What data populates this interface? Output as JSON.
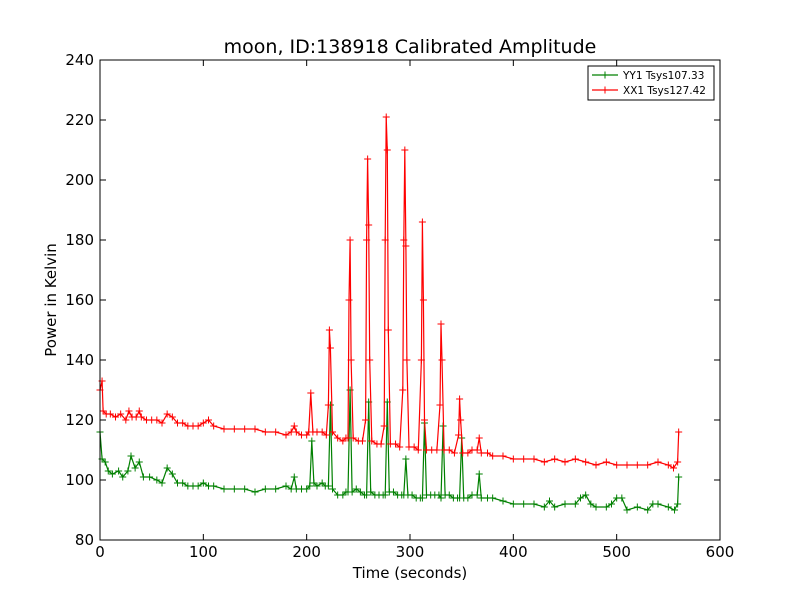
{
  "chart_data": {
    "type": "line",
    "title": "moon, ID:138918 Calibrated Amplitude",
    "xlabel": "Time (seconds)",
    "ylabel": "Power in Kelvin",
    "xlim": [
      0,
      600
    ],
    "ylim": [
      80,
      240
    ],
    "xticks": [
      0,
      100,
      200,
      300,
      400,
      500,
      600
    ],
    "yticks": [
      80,
      100,
      120,
      140,
      160,
      180,
      200,
      220,
      240
    ],
    "xtick_labels": [
      "0",
      "100",
      "200",
      "300",
      "400",
      "500",
      "600"
    ],
    "ytick_labels": [
      "80",
      "100",
      "120",
      "140",
      "160",
      "180",
      "200",
      "220",
      "240"
    ],
    "grid": false,
    "legend_position": "top-right",
    "marker": "+",
    "series": [
      {
        "name": "YY1 Tsys107.33",
        "color": "#008000",
        "points": [
          [
            0,
            116
          ],
          [
            2,
            107
          ],
          [
            5,
            106
          ],
          [
            8,
            103
          ],
          [
            12,
            102
          ],
          [
            18,
            103
          ],
          [
            22,
            101
          ],
          [
            27,
            103
          ],
          [
            30,
            108
          ],
          [
            34,
            104
          ],
          [
            38,
            106
          ],
          [
            42,
            101
          ],
          [
            48,
            101
          ],
          [
            55,
            100
          ],
          [
            60,
            99
          ],
          [
            65,
            104
          ],
          [
            70,
            102
          ],
          [
            75,
            99
          ],
          [
            80,
            99
          ],
          [
            85,
            98
          ],
          [
            90,
            98
          ],
          [
            95,
            98
          ],
          [
            100,
            99
          ],
          [
            105,
            98
          ],
          [
            110,
            98
          ],
          [
            120,
            97
          ],
          [
            130,
            97
          ],
          [
            140,
            97
          ],
          [
            150,
            96
          ],
          [
            160,
            97
          ],
          [
            170,
            97
          ],
          [
            180,
            98
          ],
          [
            185,
            97
          ],
          [
            188,
            101
          ],
          [
            190,
            97
          ],
          [
            195,
            97
          ],
          [
            200,
            97
          ],
          [
            203,
            98
          ],
          [
            205,
            113
          ],
          [
            207,
            99
          ],
          [
            210,
            98
          ],
          [
            215,
            99
          ],
          [
            218,
            98
          ],
          [
            221,
            98
          ],
          [
            223,
            125
          ],
          [
            225,
            97
          ],
          [
            230,
            95
          ],
          [
            235,
            95
          ],
          [
            238,
            96
          ],
          [
            240,
            96
          ],
          [
            242,
            130
          ],
          [
            244,
            96
          ],
          [
            248,
            97
          ],
          [
            252,
            96
          ],
          [
            256,
            95
          ],
          [
            258,
            95
          ],
          [
            260,
            126
          ],
          [
            262,
            96
          ],
          [
            266,
            95
          ],
          [
            270,
            95
          ],
          [
            274,
            95
          ],
          [
            276,
            95
          ],
          [
            278,
            126
          ],
          [
            280,
            96
          ],
          [
            284,
            96
          ],
          [
            288,
            95
          ],
          [
            292,
            95
          ],
          [
            294,
            95
          ],
          [
            296,
            107
          ],
          [
            298,
            95
          ],
          [
            302,
            95
          ],
          [
            306,
            94
          ],
          [
            310,
            94
          ],
          [
            312,
            94
          ],
          [
            314,
            119
          ],
          [
            316,
            95
          ],
          [
            320,
            95
          ],
          [
            324,
            95
          ],
          [
            328,
            95
          ],
          [
            330,
            94
          ],
          [
            332,
            118
          ],
          [
            334,
            95
          ],
          [
            338,
            95
          ],
          [
            342,
            94
          ],
          [
            346,
            94
          ],
          [
            348,
            94
          ],
          [
            350,
            114
          ],
          [
            352,
            94
          ],
          [
            356,
            94
          ],
          [
            360,
            95
          ],
          [
            365,
            95
          ],
          [
            367,
            102
          ],
          [
            369,
            94
          ],
          [
            375,
            94
          ],
          [
            380,
            94
          ],
          [
            390,
            93
          ],
          [
            400,
            92
          ],
          [
            410,
            92
          ],
          [
            420,
            92
          ],
          [
            430,
            91
          ],
          [
            435,
            93
          ],
          [
            440,
            91
          ],
          [
            450,
            92
          ],
          [
            460,
            92
          ],
          [
            465,
            94
          ],
          [
            470,
            95
          ],
          [
            475,
            92
          ],
          [
            480,
            91
          ],
          [
            490,
            91
          ],
          [
            495,
            92
          ],
          [
            500,
            94
          ],
          [
            505,
            94
          ],
          [
            510,
            90
          ],
          [
            520,
            91
          ],
          [
            530,
            90
          ],
          [
            535,
            92
          ],
          [
            540,
            92
          ],
          [
            550,
            91
          ],
          [
            556,
            90
          ],
          [
            559,
            92
          ],
          [
            560,
            101
          ]
        ]
      },
      {
        "name": "XX1 Tsys127.42",
        "color": "#ff0000",
        "points": [
          [
            0,
            130
          ],
          [
            2,
            133
          ],
          [
            3,
            123
          ],
          [
            6,
            122
          ],
          [
            10,
            122
          ],
          [
            15,
            121
          ],
          [
            20,
            122
          ],
          [
            25,
            120
          ],
          [
            28,
            123
          ],
          [
            31,
            121
          ],
          [
            35,
            121
          ],
          [
            38,
            123
          ],
          [
            40,
            121
          ],
          [
            45,
            120
          ],
          [
            50,
            120
          ],
          [
            55,
            120
          ],
          [
            60,
            119
          ],
          [
            65,
            122
          ],
          [
            70,
            121
          ],
          [
            75,
            119
          ],
          [
            80,
            119
          ],
          [
            85,
            118
          ],
          [
            90,
            118
          ],
          [
            95,
            118
          ],
          [
            100,
            119
          ],
          [
            105,
            120
          ],
          [
            110,
            118
          ],
          [
            120,
            117
          ],
          [
            130,
            117
          ],
          [
            140,
            117
          ],
          [
            150,
            117
          ],
          [
            160,
            116
          ],
          [
            170,
            116
          ],
          [
            180,
            115
          ],
          [
            185,
            116
          ],
          [
            188,
            118
          ],
          [
            190,
            116
          ],
          [
            195,
            115
          ],
          [
            200,
            115
          ],
          [
            202,
            116
          ],
          [
            204,
            129
          ],
          [
            206,
            116
          ],
          [
            210,
            116
          ],
          [
            215,
            116
          ],
          [
            219,
            115
          ],
          [
            221,
            125
          ],
          [
            222,
            150
          ],
          [
            223,
            144
          ],
          [
            225,
            116
          ],
          [
            230,
            114
          ],
          [
            235,
            113
          ],
          [
            238,
            114
          ],
          [
            240,
            114
          ],
          [
            241,
            160
          ],
          [
            242,
            180
          ],
          [
            243,
            140
          ],
          [
            245,
            114
          ],
          [
            250,
            113
          ],
          [
            254,
            113
          ],
          [
            257,
            120
          ],
          [
            258,
            180
          ],
          [
            259,
            207
          ],
          [
            260,
            185
          ],
          [
            261,
            140
          ],
          [
            263,
            113
          ],
          [
            268,
            112
          ],
          [
            272,
            112
          ],
          [
            275,
            118
          ],
          [
            276,
            180
          ],
          [
            277,
            221
          ],
          [
            278,
            210
          ],
          [
            279,
            150
          ],
          [
            281,
            112
          ],
          [
            286,
            112
          ],
          [
            290,
            111
          ],
          [
            293,
            130
          ],
          [
            294,
            180
          ],
          [
            295,
            210
          ],
          [
            296,
            178
          ],
          [
            297,
            140
          ],
          [
            299,
            111
          ],
          [
            304,
            111
          ],
          [
            308,
            110
          ],
          [
            311,
            140
          ],
          [
            312,
            186
          ],
          [
            313,
            160
          ],
          [
            314,
            120
          ],
          [
            316,
            110
          ],
          [
            321,
            110
          ],
          [
            326,
            110
          ],
          [
            329,
            125
          ],
          [
            330,
            152
          ],
          [
            331,
            140
          ],
          [
            333,
            110
          ],
          [
            338,
            110
          ],
          [
            343,
            109
          ],
          [
            347,
            115
          ],
          [
            348,
            127
          ],
          [
            349,
            120
          ],
          [
            351,
            109
          ],
          [
            356,
            109
          ],
          [
            360,
            110
          ],
          [
            365,
            110
          ],
          [
            367,
            114
          ],
          [
            369,
            109
          ],
          [
            375,
            109
          ],
          [
            380,
            108
          ],
          [
            390,
            108
          ],
          [
            400,
            107
          ],
          [
            410,
            107
          ],
          [
            420,
            107
          ],
          [
            430,
            106
          ],
          [
            440,
            107
          ],
          [
            450,
            106
          ],
          [
            460,
            107
          ],
          [
            470,
            106
          ],
          [
            480,
            105
          ],
          [
            490,
            106
          ],
          [
            500,
            105
          ],
          [
            510,
            105
          ],
          [
            520,
            105
          ],
          [
            530,
            105
          ],
          [
            540,
            106
          ],
          [
            550,
            105
          ],
          [
            555,
            104
          ],
          [
            559,
            106
          ],
          [
            560,
            116
          ]
        ]
      }
    ]
  }
}
